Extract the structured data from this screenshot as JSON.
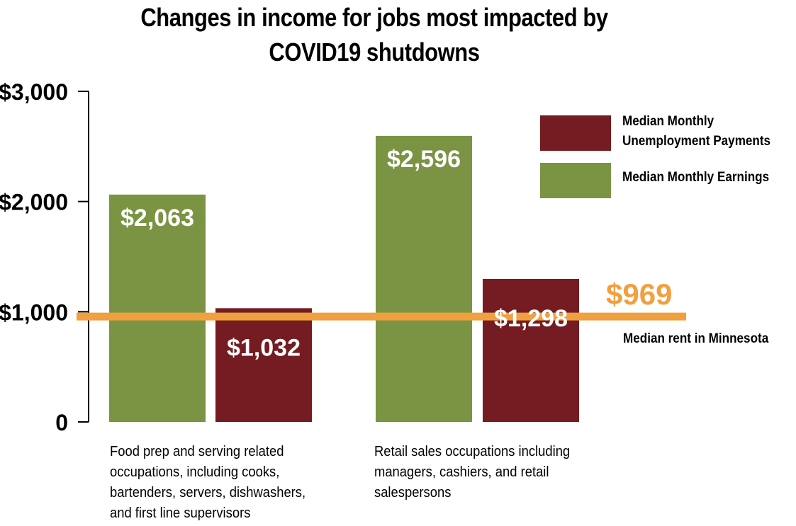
{
  "header": {
    "title_line1": "Changes in income for jobs most impacted by",
    "title_line2": "COVID19 shutdowns"
  },
  "chart_data": {
    "type": "bar",
    "title": "Changes in income for jobs most impacted by COVID19 shutdowns",
    "xlabel": "",
    "ylabel": "",
    "ylim": [
      0,
      3000
    ],
    "y_ticks": [
      0,
      1000,
      2000,
      3000
    ],
    "y_tick_labels": [
      "0",
      "$1,000",
      "$2,000",
      "$3,000"
    ],
    "grid": false,
    "legend_position": "top-right",
    "categories": [
      "Food prep and serving related occupations, including cooks, bartenders, servers, dishwashers, and first line supervisors",
      "Retail sales occupations including managers, cashiers, and retail salespersons"
    ],
    "category_lines": [
      [
        "Food prep and serving related",
        "occupations, including cooks,",
        "bartenders, servers, dishwashers,",
        "and first line supervisors"
      ],
      [
        "Retail sales occupations including",
        "managers, cashiers, and retail",
        "salespersons"
      ]
    ],
    "series": [
      {
        "name": "Median Monthly Earnings",
        "color": "#7a9444",
        "values": [
          2063,
          2596
        ],
        "labels": [
          "$2,063",
          "$2,596"
        ]
      },
      {
        "name": "Median Monthly Unemployment Payments",
        "color": "#741c21",
        "values": [
          1032,
          1298
        ],
        "labels": [
          "$1,032",
          "$1,298"
        ]
      }
    ],
    "legend": [
      {
        "lines": [
          "Median Monthly",
          "Unemployment Payments"
        ],
        "color": "#741c21"
      },
      {
        "lines": [
          "Median Monthly Earnings"
        ],
        "color": "#7a9444"
      }
    ],
    "reference_line": {
      "value": 969,
      "label": "$969",
      "description": "Median rent in Minnesota",
      "color": "#f0a03f"
    }
  }
}
